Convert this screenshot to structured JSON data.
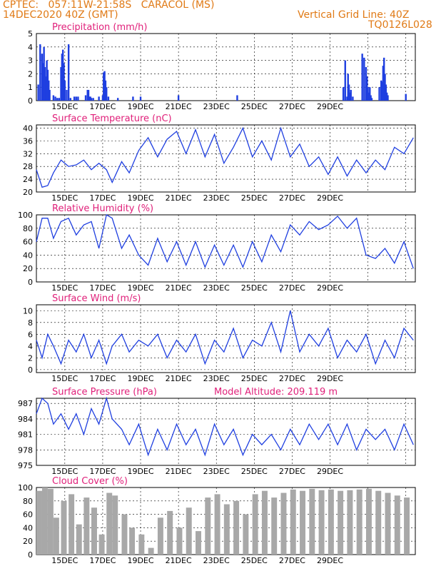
{
  "header": {
    "line1": "CPTEC:   057:11W-21:58S   CARACOL (MS)",
    "line2": "14DEC2020 40Z (GMT)",
    "grid_note": "Vertical Grid Line: 40Z",
    "run_id": "TQ0126L028"
  },
  "colors": {
    "header": "#e07a16",
    "title": "#e0207a",
    "series": "#1f3fe0",
    "bars": "#1f3fe0",
    "cloud": "#a8a8a8",
    "grid": "#000000"
  },
  "date_labels": [
    "15DEC",
    "17DEC",
    "19DEC",
    "21DEC",
    "23DEC",
    "25DEC",
    "27DEC",
    "29DEC"
  ],
  "chart_data": [
    {
      "type": "bar",
      "title": "Precipitation (mm/h)",
      "ylim": [
        0,
        5
      ],
      "yticks": [
        0,
        1,
        2,
        3,
        4,
        5
      ],
      "x": [
        0.1,
        0.2,
        0.3,
        0.35,
        0.4,
        0.45,
        0.5,
        0.55,
        0.6,
        0.65,
        0.7,
        0.9,
        1.0,
        1.1,
        1.2,
        1.3,
        1.35,
        1.4,
        1.45,
        1.5,
        1.6,
        1.7,
        1.8,
        2.0,
        2.1,
        2.2,
        2.6,
        2.7,
        2.75,
        2.8,
        2.85,
        2.9,
        3.0,
        3.3,
        3.5,
        3.55,
        3.6,
        3.65,
        3.7,
        3.8,
        4.3,
        5.1,
        5.5,
        7.5,
        10.6,
        16.2,
        16.3,
        16.4,
        16.45,
        16.5,
        16.55,
        16.6,
        16.7,
        17.2,
        17.3,
        17.4,
        17.45,
        17.5,
        17.55,
        17.6,
        17.65,
        17.7,
        18.1,
        18.2,
        18.25,
        18.3,
        18.35,
        18.4,
        18.45,
        18.5,
        18.55,
        19.5
      ],
      "values": [
        1.2,
        4.2,
        3.5,
        2.8,
        4.0,
        2.5,
        1.8,
        3.0,
        2.3,
        1.5,
        0.8,
        0.4,
        0.3,
        0.2,
        0.2,
        2.5,
        3.5,
        3.8,
        2.8,
        1.5,
        0.8,
        4.2,
        0.2,
        0.3,
        0.3,
        0.3,
        0.4,
        0.8,
        0.8,
        0.3,
        0.3,
        0.2,
        0.2,
        0.3,
        0.4,
        2.1,
        2.2,
        1.5,
        1.0,
        0.3,
        0.2,
        0.3,
        0.3,
        0.4,
        0.4,
        1.0,
        3.0,
        0.3,
        2.0,
        1.2,
        0.6,
        0.8,
        0.3,
        3.5,
        3.2,
        2.5,
        1.8,
        1.0,
        0.6,
        1.0,
        0.4,
        0.2,
        1.0,
        1.5,
        1.4,
        2.6,
        3.2,
        2.0,
        1.2,
        0.6,
        0.4,
        0.5
      ]
    },
    {
      "type": "line",
      "title": "Surface Temperature (nC)",
      "ylim": [
        20,
        41
      ],
      "yticks": [
        20,
        24,
        28,
        32,
        36,
        40
      ],
      "x": [
        0,
        0.3,
        0.6,
        0.9,
        1.3,
        1.7,
        2.1,
        2.5,
        2.9,
        3.3,
        3.7,
        4.0,
        4.5,
        4.9,
        5.4,
        5.9,
        6.4,
        6.9,
        7.4,
        7.9,
        8.4,
        8.9,
        9.4,
        9.9,
        10.4,
        10.9,
        11.4,
        11.9,
        12.4,
        12.9,
        13.4,
        13.9,
        14.4,
        14.9,
        15.4,
        15.9,
        16.4,
        16.9,
        17.4,
        17.9,
        18.4,
        18.9,
        19.4,
        19.9
      ],
      "values": [
        27,
        21.5,
        22,
        26,
        30,
        28,
        28.5,
        30,
        27,
        29,
        27,
        23,
        29.5,
        26,
        33,
        37,
        31,
        36.5,
        39,
        32,
        39.5,
        31,
        38,
        29,
        34,
        40,
        31,
        36,
        30,
        40,
        31,
        35,
        28,
        31,
        25.5,
        31,
        25,
        30,
        26,
        30,
        27,
        34,
        32,
        37
      ]
    },
    {
      "type": "line",
      "title": "Relative Humidity (%)",
      "ylim": [
        0,
        100
      ],
      "yticks": [
        0,
        20,
        40,
        60,
        80,
        100
      ],
      "x": [
        0,
        0.3,
        0.6,
        0.9,
        1.3,
        1.7,
        2.1,
        2.5,
        2.9,
        3.3,
        3.7,
        4.0,
        4.5,
        4.9,
        5.4,
        5.9,
        6.4,
        6.9,
        7.4,
        7.9,
        8.4,
        8.9,
        9.4,
        9.9,
        10.4,
        10.9,
        11.4,
        11.9,
        12.4,
        12.9,
        13.4,
        13.9,
        14.4,
        14.9,
        15.4,
        15.9,
        16.4,
        16.9,
        17.4,
        17.9,
        18.4,
        18.9,
        19.4,
        19.9
      ],
      "values": [
        60,
        95,
        95,
        65,
        90,
        95,
        70,
        85,
        90,
        50,
        100,
        95,
        50,
        70,
        40,
        25,
        65,
        30,
        60,
        25,
        60,
        22,
        55,
        25,
        55,
        22,
        60,
        30,
        70,
        45,
        85,
        70,
        90,
        78,
        85,
        98,
        80,
        95,
        40,
        35,
        50,
        28,
        60,
        20
      ]
    },
    {
      "type": "line",
      "title": "Surface Wind (m/s)",
      "ylim": [
        -0.5,
        11
      ],
      "yticks": [
        0,
        2,
        4,
        6,
        8,
        10
      ],
      "x": [
        0,
        0.3,
        0.6,
        0.9,
        1.3,
        1.7,
        2.1,
        2.5,
        2.9,
        3.3,
        3.7,
        4.0,
        4.5,
        4.9,
        5.4,
        5.9,
        6.4,
        6.9,
        7.4,
        7.9,
        8.4,
        8.9,
        9.4,
        9.9,
        10.4,
        10.9,
        11.4,
        11.9,
        12.4,
        12.9,
        13.4,
        13.9,
        14.4,
        14.9,
        15.4,
        15.9,
        16.4,
        16.9,
        17.4,
        17.9,
        18.4,
        18.9,
        19.4,
        19.9
      ],
      "values": [
        5,
        2,
        6,
        4,
        1,
        5,
        3,
        6,
        2,
        5,
        1,
        4,
        6,
        3,
        5,
        4,
        6,
        2,
        5,
        3,
        6,
        1,
        5,
        3,
        7,
        2,
        5,
        4,
        8,
        3,
        10,
        3,
        6,
        4,
        7,
        2,
        5,
        3,
        6,
        1,
        5,
        2,
        7,
        5
      ]
    },
    {
      "type": "line",
      "title": "Surface Pressure (hPa)",
      "annotation": "Model Altitude: 209.119 m",
      "ylim": [
        975,
        988
      ],
      "yticks": [
        975,
        978,
        981,
        984,
        987
      ],
      "x": [
        0,
        0.3,
        0.6,
        0.9,
        1.3,
        1.7,
        2.1,
        2.5,
        2.9,
        3.3,
        3.7,
        4.0,
        4.5,
        4.9,
        5.4,
        5.9,
        6.4,
        6.9,
        7.4,
        7.9,
        8.4,
        8.9,
        9.4,
        9.9,
        10.4,
        10.9,
        11.4,
        11.9,
        12.4,
        12.9,
        13.4,
        13.9,
        14.4,
        14.9,
        15.4,
        15.9,
        16.4,
        16.9,
        17.4,
        17.9,
        18.4,
        18.9,
        19.4,
        19.9
      ],
      "values": [
        985,
        988,
        987,
        983,
        985,
        982,
        985,
        981,
        986,
        983,
        988,
        984,
        982,
        979,
        983,
        977,
        982,
        978,
        983,
        979,
        982,
        977,
        983,
        979,
        982,
        977,
        981,
        979,
        981,
        978,
        982,
        979,
        983,
        980,
        983,
        979,
        983,
        978,
        982,
        980,
        982,
        978,
        983,
        979
      ]
    },
    {
      "type": "bar",
      "title": "Cloud Cover (%)",
      "ylim": [
        0,
        100
      ],
      "yticks": [
        0,
        20,
        40,
        60,
        80,
        100
      ],
      "x": [
        0,
        0.3,
        0.6,
        0.9,
        1.3,
        1.7,
        2.1,
        2.5,
        2.9,
        3.3,
        3.7,
        4.0,
        4.5,
        4.9,
        5.4,
        5.9,
        6.4,
        6.9,
        7.4,
        7.9,
        8.4,
        8.9,
        9.4,
        9.9,
        10.4,
        10.9,
        11.4,
        11.9,
        12.4,
        12.9,
        13.4,
        13.9,
        14.4,
        14.9,
        15.4,
        15.9,
        16.4,
        16.9,
        17.4,
        17.9,
        18.4,
        18.9,
        19.4
      ],
      "values": [
        95,
        100,
        98,
        55,
        80,
        90,
        45,
        85,
        70,
        30,
        92,
        88,
        60,
        40,
        30,
        10,
        55,
        65,
        40,
        70,
        35,
        85,
        90,
        75,
        80,
        60,
        90,
        95,
        85,
        92,
        97,
        95,
        98,
        96,
        97,
        95,
        96,
        97,
        98,
        95,
        92,
        88,
        85
      ]
    }
  ]
}
